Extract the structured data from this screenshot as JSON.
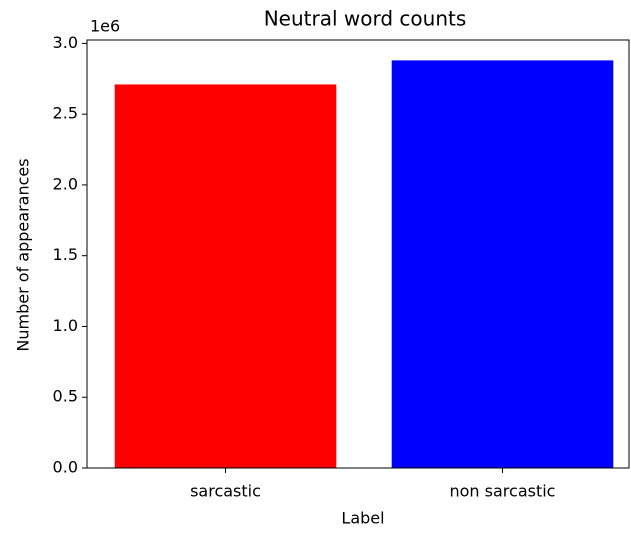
{
  "chart_data": {
    "type": "bar",
    "title": "Neutral word counts",
    "x_label": "Label",
    "y_label": "Number of appearances",
    "y_offset_label": "1e6",
    "categories": [
      "sarcastic",
      "non sarcastic"
    ],
    "values": [
      2710000,
      2880000
    ],
    "colors": [
      "#ff0000",
      "#0000ff"
    ],
    "ylim": [
      0,
      3024000
    ],
    "yticks": [
      {
        "value": 0,
        "label": "0.0"
      },
      {
        "value": 500000,
        "label": "0.5"
      },
      {
        "value": 1000000,
        "label": "1.0"
      },
      {
        "value": 1500000,
        "label": "1.5"
      },
      {
        "value": 2000000,
        "label": "2.0"
      },
      {
        "value": 2500000,
        "label": "2.5"
      },
      {
        "value": 3000000,
        "label": "3.0"
      }
    ],
    "grid": false
  }
}
